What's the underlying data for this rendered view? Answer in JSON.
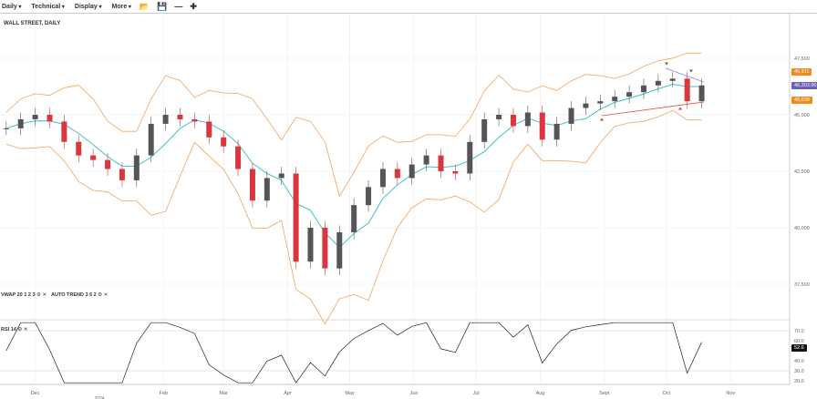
{
  "toolbar": {
    "items": [
      "Daily",
      "Technical",
      "Display",
      "More"
    ],
    "icons": [
      "folder-open-icon",
      "save-icon",
      "zoom-out-icon",
      "zoom-in-icon"
    ]
  },
  "chart_data": {
    "type": "candlestick",
    "title": "WALL STREET, DAILY",
    "x": [
      "2023-11-17",
      "2023-11-24",
      "2023-12-01",
      "2023-12-08",
      "2023-12-15",
      "2023-12-22",
      "2023-12-29",
      "2024-01-05",
      "2024-01-12",
      "2024-01-19",
      "2024-01-26",
      "2024-02-02",
      "2024-02-09",
      "2024-02-16",
      "2024-02-23",
      "2024-03-01",
      "2024-03-08",
      "2024-03-15",
      "2024-03-22",
      "2024-03-29",
      "2024-04-05",
      "2024-04-12",
      "2024-04-19",
      "2024-04-26",
      "2024-05-03",
      "2024-05-10",
      "2024-05-17",
      "2024-05-24",
      "2024-05-31",
      "2024-06-07",
      "2024-06-14",
      "2024-06-21",
      "2024-06-28",
      "2024-07-05",
      "2024-07-12",
      "2024-07-19",
      "2024-07-26",
      "2024-08-02",
      "2024-08-09",
      "2024-08-16",
      "2024-08-23",
      "2024-08-30",
      "2024-09-06",
      "2024-09-13",
      "2024-09-20",
      "2024-09-27",
      "2024-10-04",
      "2024-10-11",
      "2024-10-18"
    ],
    "close": [
      44400,
      44800,
      45000,
      44700,
      43800,
      43200,
      43000,
      42600,
      42100,
      43200,
      44600,
      45000,
      44800,
      44700,
      44000,
      43600,
      42600,
      41200,
      42200,
      42400,
      38500,
      40000,
      38200,
      39800,
      41000,
      41800,
      42600,
      42200,
      42800,
      43200,
      42500,
      42400,
      43800,
      44800,
      45000,
      44500,
      45100,
      43900,
      44600,
      45300,
      45500,
      45600,
      45800,
      46000,
      46300,
      46500,
      46600,
      45600,
      46300
    ],
    "y_ticks": [
      "47,500",
      "45,000",
      "42,500",
      "40,000",
      "37,500"
    ],
    "y_tick_values": [
      47500,
      45000,
      42500,
      40000,
      37500
    ],
    "x_ticks": [
      {
        "label": "Dec",
        "date": "2023-12-01"
      },
      {
        "label": "Feb",
        "date": "2024-02-01"
      },
      {
        "label": "Mar",
        "date": "2024-03-01"
      },
      {
        "label": "Apr",
        "date": "2024-04-01"
      },
      {
        "label": "May",
        "date": "2024-05-01"
      },
      {
        "label": "Jun",
        "date": "2024-06-01"
      },
      {
        "label": "Jul",
        "date": "2024-07-01"
      },
      {
        "label": "Aug",
        "date": "2024-08-01"
      },
      {
        "label": "Sept",
        "date": "2024-09-01"
      },
      {
        "label": "Oct",
        "date": "2024-10-01"
      },
      {
        "label": "Nov",
        "date": "2024-11-01"
      }
    ],
    "year_label": {
      "label": "2024",
      "date": "2024-01-01"
    },
    "ylim": [
      36500,
      48500
    ],
    "indicators": {
      "vwap": "VWAP 20 1 2 3",
      "auto_trend": "AUTO TREND 3 5 2",
      "rsi": "RSI 14"
    },
    "rsi_ticks": [
      "70.0",
      "60.0",
      "40.0",
      "30.0",
      "20.0"
    ],
    "rsi_tick_values": [
      70,
      60,
      40,
      30,
      20
    ],
    "price_tags": [
      {
        "label": "46,911",
        "value": 46911,
        "color": "#f0891e"
      },
      {
        "label": "46,303.00",
        "value": 46303,
        "color": "#6a5fb0"
      },
      {
        "label": "45,630",
        "value": 45630,
        "color": "#f0891e"
      }
    ],
    "rsi_tag": {
      "label": "52.6",
      "value": 52.6
    },
    "colors": {
      "up": "#555555",
      "down": "#d9363e",
      "band": "#f5a25d",
      "mid": "#3cc3c9",
      "rsi": "#222222",
      "trend_upper": "#8a86d6",
      "trend_lower": "#e8484e"
    }
  }
}
